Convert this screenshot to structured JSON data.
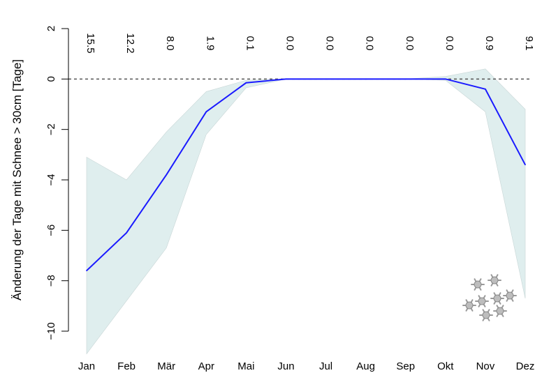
{
  "chart_data": {
    "type": "line",
    "ylabel": "Änderung der Tage mit Schnee > 30cm [Tage]",
    "ylim": [
      -10.5,
      2.3
    ],
    "yticks": [
      2,
      0,
      -2,
      -4,
      -6,
      -8,
      -10
    ],
    "categories": [
      "Jan",
      "Feb",
      "Mär",
      "Apr",
      "Mai",
      "Jun",
      "Jul",
      "Aug",
      "Sep",
      "Okt",
      "Nov",
      "Dez"
    ],
    "top_labels": [
      "15.5",
      "12.2",
      "8.0",
      "1.9",
      "0.1",
      "0.0",
      "0.0",
      "0.0",
      "0.0",
      "0.0",
      "0.9",
      "9.1"
    ],
    "series": [
      {
        "values": [
          -7.6,
          -6.1,
          -3.8,
          -1.3,
          -0.15,
          0.0,
          0.0,
          0.0,
          0.0,
          0.0,
          -0.4,
          -3.4
        ],
        "color": "#1a1aff"
      }
    ],
    "band": {
      "upper": [
        -3.1,
        -4.0,
        -2.1,
        -0.5,
        -0.05,
        0.0,
        0.0,
        0.0,
        0.0,
        0.1,
        0.4,
        -1.2
      ],
      "lower": [
        -10.9,
        -8.8,
        -6.7,
        -2.2,
        -0.35,
        0.0,
        0.0,
        0.0,
        0.0,
        -0.05,
        -1.3,
        -8.7
      ],
      "color": "#dfeeee"
    },
    "reference_line": 0,
    "grid": false,
    "legend": "none"
  }
}
